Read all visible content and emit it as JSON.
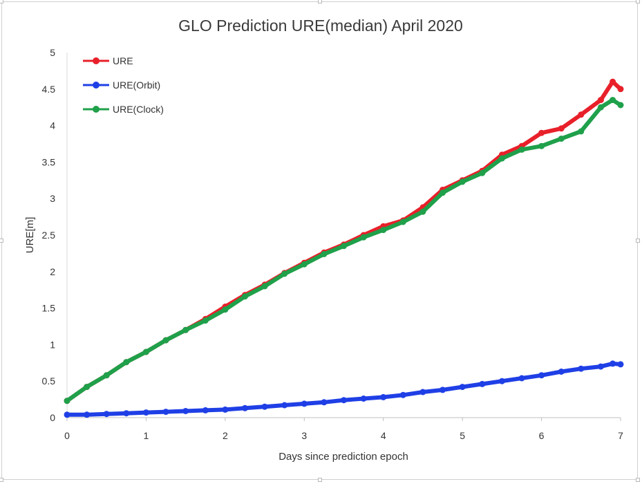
{
  "chart_data": {
    "type": "line",
    "title": "GLO Prediction URE(median) April 2020",
    "xlabel": "Days since prediction epoch",
    "ylabel": "URE[m]",
    "xlim": [
      0,
      7
    ],
    "ylim": [
      0,
      5
    ],
    "xticks": [
      "0",
      "1",
      "2",
      "3",
      "4",
      "5",
      "6",
      "7"
    ],
    "yticks": [
      "0",
      "0.5",
      "1",
      "1.5",
      "2",
      "2.5",
      "3",
      "3.5",
      "4",
      "4.5",
      "5"
    ],
    "grid": false,
    "legend_position": "top-left",
    "x": [
      0,
      0.25,
      0.5,
      0.75,
      1,
      1.25,
      1.5,
      1.75,
      2,
      2.25,
      2.5,
      2.75,
      3,
      3.25,
      3.5,
      3.75,
      4,
      4.25,
      4.5,
      4.75,
      5,
      5.25,
      5.5,
      5.75,
      6,
      6.25,
      6.5,
      6.75,
      6.9,
      7
    ],
    "series": [
      {
        "name": "URE",
        "color": "#e8202a",
        "values": [
          0.23,
          0.42,
          0.58,
          0.76,
          0.9,
          1.06,
          1.2,
          1.35,
          1.52,
          1.68,
          1.82,
          1.98,
          2.12,
          2.26,
          2.37,
          2.5,
          2.62,
          2.7,
          2.88,
          3.12,
          3.25,
          3.38,
          3.6,
          3.72,
          3.9,
          3.96,
          4.15,
          4.35,
          4.6,
          4.5
        ]
      },
      {
        "name": "URE(Orbit)",
        "color": "#1f3fe6",
        "values": [
          0.04,
          0.04,
          0.05,
          0.06,
          0.07,
          0.08,
          0.09,
          0.1,
          0.11,
          0.13,
          0.15,
          0.17,
          0.19,
          0.21,
          0.24,
          0.26,
          0.28,
          0.31,
          0.35,
          0.38,
          0.42,
          0.46,
          0.5,
          0.54,
          0.58,
          0.63,
          0.67,
          0.7,
          0.74,
          0.73
        ]
      },
      {
        "name": "URE(Clock)",
        "color": "#1fa04a",
        "values": [
          0.23,
          0.42,
          0.58,
          0.76,
          0.9,
          1.06,
          1.2,
          1.33,
          1.48,
          1.66,
          1.8,
          1.97,
          2.1,
          2.24,
          2.35,
          2.47,
          2.57,
          2.68,
          2.82,
          3.08,
          3.23,
          3.35,
          3.55,
          3.67,
          3.72,
          3.82,
          3.92,
          4.25,
          4.35,
          4.28
        ]
      }
    ]
  }
}
